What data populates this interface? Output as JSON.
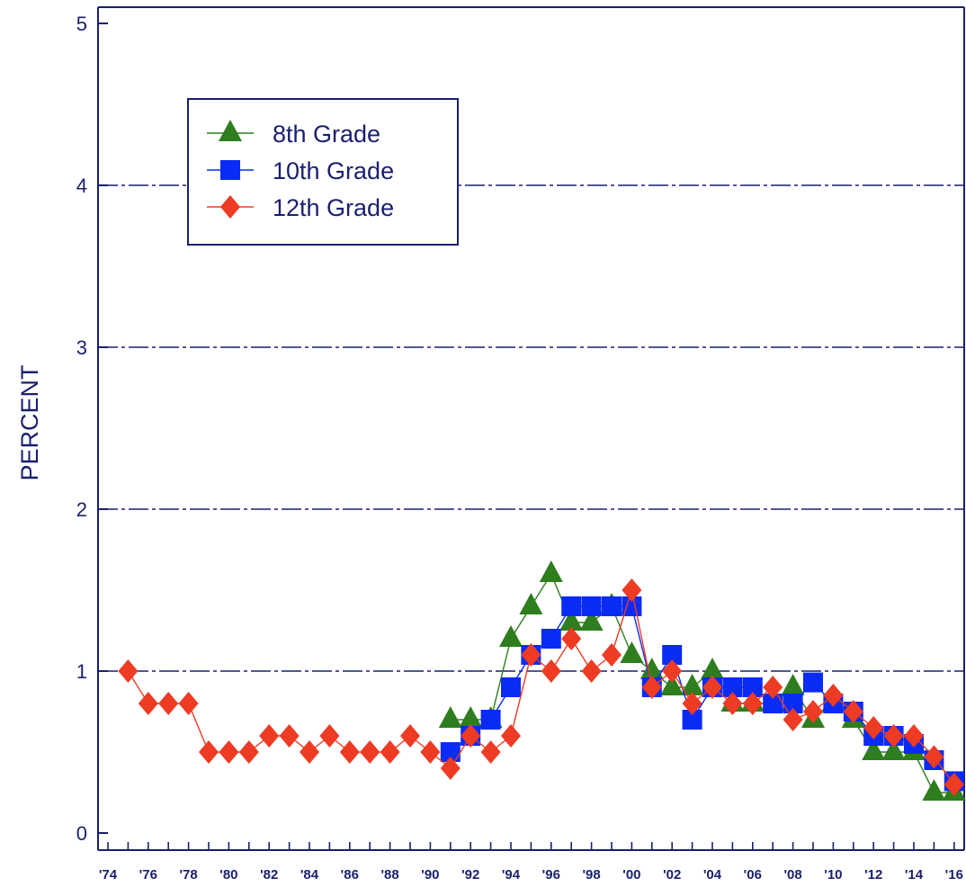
{
  "chart_data": {
    "type": "line",
    "title": "",
    "xlabel": "",
    "ylabel": "PERCENT",
    "ylim": [
      0,
      5
    ],
    "xlim": [
      1974,
      2016
    ],
    "y_ticks": [
      "0",
      "1",
      "2",
      "3",
      "4",
      "5"
    ],
    "x_tick_labels": [
      "'74",
      "'76",
      "'78",
      "'80",
      "'82",
      "'84",
      "'86",
      "'88",
      "'90",
      "'92",
      "'94",
      "'96",
      "'98",
      "'00",
      "'02",
      "'04",
      "'06",
      "'08",
      "'10",
      "'12",
      "'14",
      "'16"
    ],
    "gridlines": "horizontal dashed",
    "legend": "upper-left",
    "series": [
      {
        "name": "8th Grade",
        "marker": "triangle",
        "color": "#2e7d1e",
        "x": [
          1991,
          1992,
          1993,
          1994,
          1995,
          1996,
          1997,
          1998,
          1999,
          2000,
          2001,
          2002,
          2003,
          2004,
          2005,
          2006,
          2007,
          2008,
          2009,
          2010,
          2011,
          2012,
          2013,
          2014,
          2015,
          2016
        ],
        "values": [
          0.7,
          0.7,
          0.7,
          1.2,
          1.4,
          1.6,
          1.3,
          1.3,
          1.4,
          1.1,
          1.0,
          0.9,
          0.9,
          1.0,
          0.8,
          0.8,
          0.8,
          0.9,
          0.7,
          0.8,
          0.7,
          0.5,
          0.5,
          0.5,
          0.25,
          0.25
        ]
      },
      {
        "name": "10th Grade",
        "marker": "square",
        "color": "#0a2bf5",
        "x": [
          1991,
          1992,
          1993,
          1994,
          1995,
          1996,
          1997,
          1998,
          1999,
          2000,
          2001,
          2002,
          2003,
          2004,
          2005,
          2006,
          2007,
          2008,
          2009,
          2010,
          2011,
          2012,
          2013,
          2014,
          2015,
          2016
        ],
        "values": [
          0.5,
          0.6,
          0.7,
          0.9,
          1.1,
          1.2,
          1.4,
          1.4,
          1.4,
          1.4,
          0.9,
          1.1,
          0.7,
          0.9,
          0.9,
          0.9,
          0.8,
          0.8,
          0.93,
          0.8,
          0.75,
          0.6,
          0.6,
          0.55,
          0.45,
          0.32
        ]
      },
      {
        "name": "12th Grade",
        "marker": "diamond",
        "color": "#ee3b24",
        "x": [
          1975,
          1976,
          1977,
          1978,
          1979,
          1980,
          1981,
          1982,
          1983,
          1984,
          1985,
          1986,
          1987,
          1988,
          1989,
          1990,
          1991,
          1992,
          1993,
          1994,
          1995,
          1996,
          1997,
          1998,
          1999,
          2000,
          2001,
          2002,
          2003,
          2004,
          2005,
          2006,
          2007,
          2008,
          2009,
          2010,
          2011,
          2012,
          2013,
          2014,
          2015,
          2016
        ],
        "values": [
          1.0,
          0.8,
          0.8,
          0.8,
          0.5,
          0.5,
          0.5,
          0.6,
          0.6,
          0.5,
          0.6,
          0.5,
          0.5,
          0.5,
          0.6,
          0.5,
          0.4,
          0.6,
          0.5,
          0.6,
          1.1,
          1.0,
          1.2,
          1.0,
          1.1,
          1.5,
          0.9,
          1.0,
          0.8,
          0.9,
          0.8,
          0.8,
          0.9,
          0.7,
          0.75,
          0.85,
          0.75,
          0.65,
          0.6,
          0.6,
          0.47,
          0.3
        ]
      }
    ]
  }
}
